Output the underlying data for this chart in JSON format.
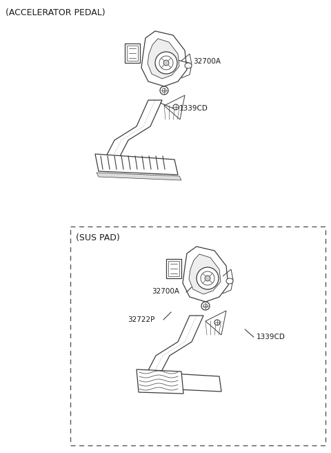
{
  "title": "(ACCELERATOR PEDAL)",
  "sus_pad_label": "(SUS PAD)",
  "label_32700A": "32700A",
  "label_1339CD": "1339CD",
  "label_32722P": "32722P",
  "bg_color": "#ffffff",
  "line_color": "#3a3a3a",
  "text_color": "#1a1a1a",
  "fig_width": 4.8,
  "fig_height": 6.56,
  "dpi": 100
}
